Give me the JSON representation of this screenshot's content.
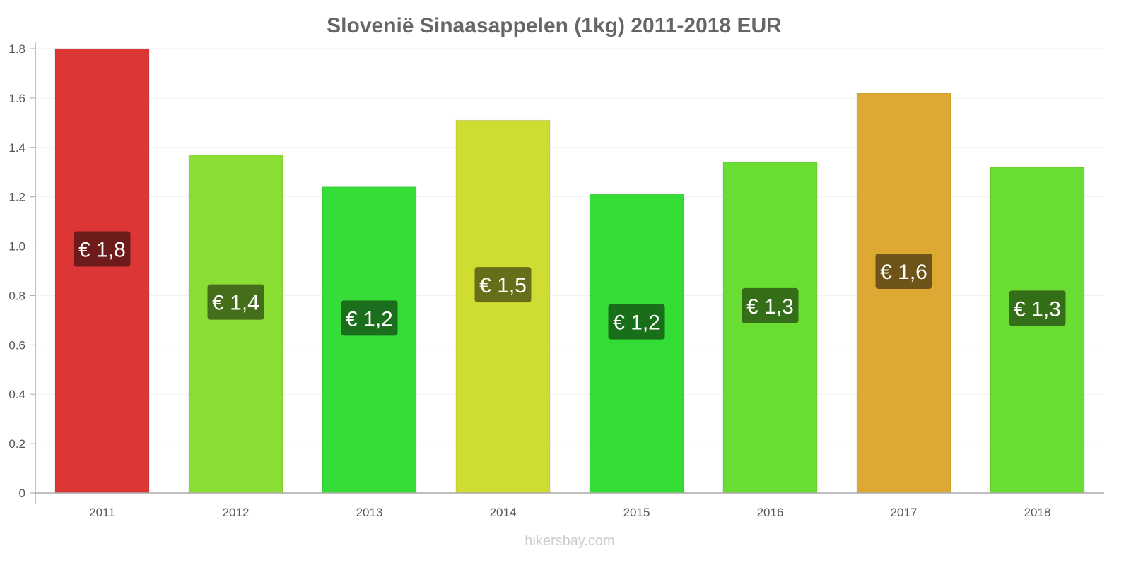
{
  "chart_data": {
    "type": "bar",
    "title": "Slovenië Sinaasappelen (1kg) 2011-2018 EUR",
    "xlabel": "",
    "ylabel": "",
    "ylim": [
      0,
      1.8
    ],
    "yticks": [
      "0",
      "0.2",
      "0.4",
      "0.6",
      "0.8",
      "1.0",
      "1.2",
      "1.4",
      "1.6",
      "1.8"
    ],
    "grid": true,
    "categories": [
      "2011",
      "2012",
      "2013",
      "2014",
      "2015",
      "2016",
      "2017",
      "2018"
    ],
    "values": [
      1.8,
      1.37,
      1.24,
      1.51,
      1.21,
      1.34,
      1.62,
      1.32
    ],
    "data_labels": [
      "€ 1,8",
      "€ 1,4",
      "€ 1,2",
      "€ 1,5",
      "€ 1,2",
      "€ 1,3",
      "€ 1,6",
      "€ 1,3"
    ],
    "colors": [
      "#dd3636",
      "#8add33",
      "#36dd36",
      "#cfdd33",
      "#33dd33",
      "#6add33",
      "#dda833",
      "#6add33"
    ],
    "label_colors": [
      "#6e1b1b",
      "#456e1a",
      "#1b6e1b",
      "#676e19",
      "#196e19",
      "#356e19",
      "#6e5419",
      "#356e19"
    ]
  },
  "watermark": "hikersbay.com"
}
